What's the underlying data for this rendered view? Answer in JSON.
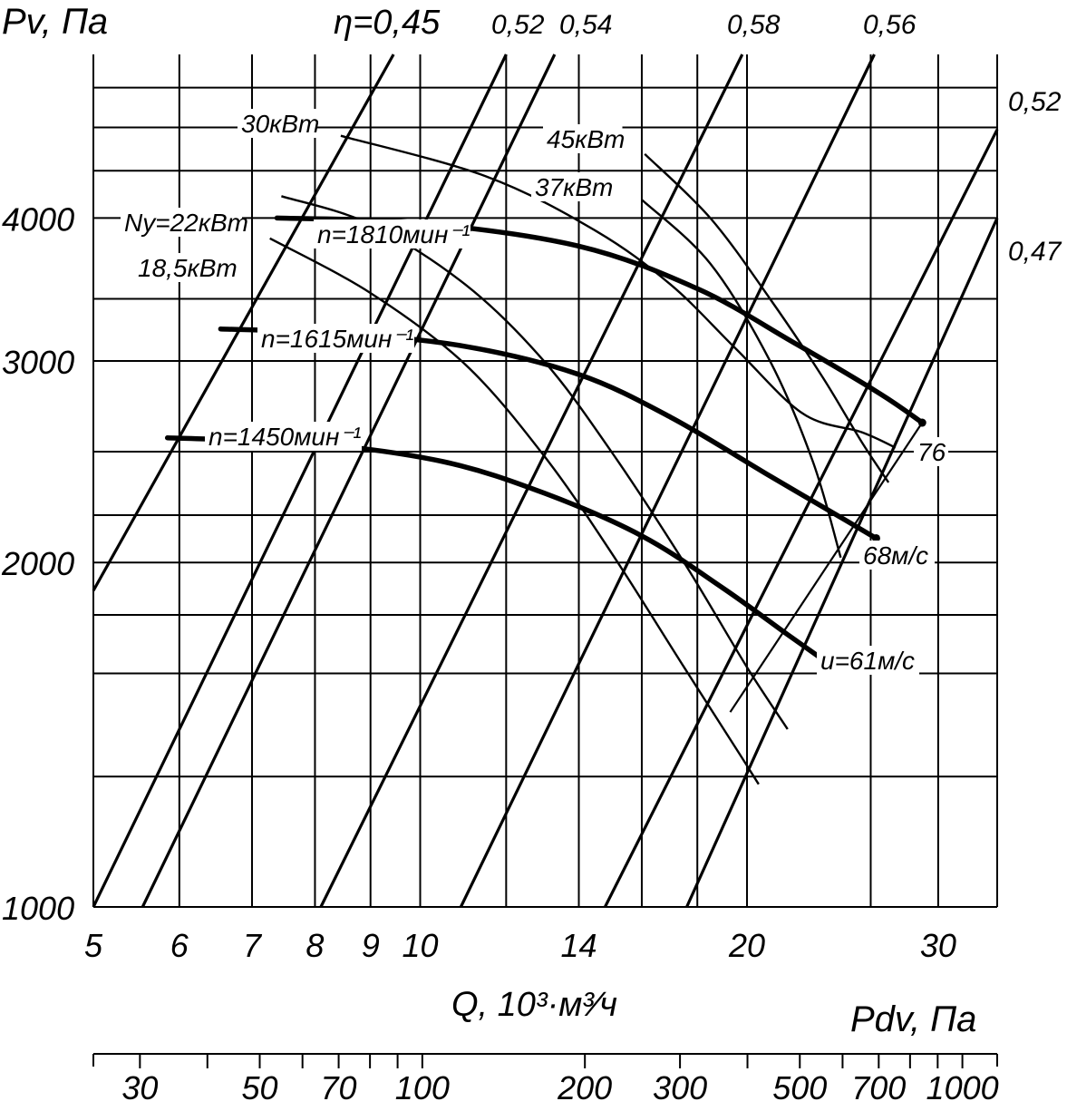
{
  "chart_data": {
    "type": "line",
    "title": "",
    "ylabel": "Pv, Па",
    "xlabel": "Q, 10³·м³⁄ч",
    "x2label": "Pdv, Па",
    "x_scale": "log",
    "y_scale": "log",
    "xlim": [
      5,
      34
    ],
    "ylim": [
      1000,
      5560
    ],
    "x_ticks": [
      5,
      6,
      7,
      8,
      9,
      10,
      14,
      20,
      30
    ],
    "x_tick_labels": [
      "5",
      "6",
      "7",
      "8",
      "9",
      "10",
      "14",
      "20",
      "30"
    ],
    "x_extra_gridlines": [
      12,
      16,
      18,
      26
    ],
    "y_ticks": [
      1000,
      2000,
      3000,
      4000
    ],
    "y_tick_labels": [
      "1000",
      "2000",
      "3000",
      "4000"
    ],
    "y_extra_gridlines": [
      1300,
      1600,
      1800,
      2200,
      2500,
      3400,
      4400,
      4800,
      5200
    ],
    "x2_scale": "log",
    "x2lim": [
      24.6,
      1160
    ],
    "x2_ticks": [
      30,
      40,
      50,
      60,
      70,
      80,
      90,
      100,
      200,
      300,
      400,
      500,
      600,
      700,
      800,
      900,
      1000
    ],
    "x2_labeled_ticks": [
      30,
      50,
      70,
      100,
      200,
      300,
      500,
      700,
      1000
    ],
    "x2_tick_labels": [
      "30",
      "50",
      "70",
      "100",
      "200",
      "300",
      "500",
      "700",
      "1000"
    ],
    "grid": true,
    "series": [
      {
        "name": "n=1810мин⁻¹",
        "kind": "speed",
        "x": [
          7.38,
          10,
          14,
          18,
          22,
          26.5,
          29
        ],
        "y": [
          4000,
          3960,
          3780,
          3470,
          3120,
          2810,
          2650
        ]
      },
      {
        "name": "n=1615мин⁻¹",
        "kind": "speed",
        "x": [
          6.55,
          8.5,
          11,
          14,
          17,
          21,
          24.6,
          26.3
        ],
        "y": [
          3200,
          3170,
          3090,
          2920,
          2680,
          2380,
          2180,
          2100
        ]
      },
      {
        "name": "n=1450мин⁻¹",
        "kind": "speed",
        "x": [
          5.85,
          8,
          10.5,
          13,
          16,
          19,
          21.8,
          23.6
        ],
        "y": [
          2570,
          2540,
          2450,
          2300,
          2110,
          1900,
          1730,
          1640
        ]
      }
    ],
    "efficiency_lines": [
      {
        "label": "η=0,45",
        "x": [
          5,
          9.45
        ],
        "y": [
          1890,
          5560
        ]
      },
      {
        "label": "0,52",
        "x": [
          5,
          12.0
        ],
        "y": [
          1000,
          5560
        ]
      },
      {
        "label": "0,54",
        "x": [
          5.55,
          13.3
        ],
        "y": [
          1000,
          5560
        ]
      },
      {
        "label": "0,58",
        "x": [
          8.1,
          19.8
        ],
        "y": [
          1000,
          5560
        ]
      },
      {
        "label": "0,56",
        "x": [
          10.9,
          26.2
        ],
        "y": [
          1000,
          5560
        ]
      },
      {
        "label": "0,52",
        "x": [
          14.8,
          34
        ],
        "y": [
          1000,
          4780
        ]
      },
      {
        "label": "0,47",
        "x": [
          17.6,
          34
        ],
        "y": [
          1000,
          4000
        ]
      }
    ],
    "power_curves": [
      {
        "label": "30кВт",
        "x": [
          8.45,
          11.5,
          14.5,
          17,
          19.5,
          22.5,
          25.5,
          27.4
        ],
        "y": [
          4720,
          4350,
          3900,
          3500,
          3080,
          2700,
          2600,
          2520
        ]
      },
      {
        "label": "45кВт",
        "x": [
          16.1,
          18.5,
          21,
          23.5,
          25.5,
          27
        ],
        "y": [
          4550,
          4000,
          3400,
          2900,
          2550,
          2350
        ]
      },
      {
        "label": "37кВт",
        "x": [
          16,
          18.5,
          21,
          23,
          24.4
        ],
        "y": [
          4150,
          3650,
          3000,
          2450,
          2020
        ]
      },
      {
        "label": "Ny=22кВт",
        "x": [
          7.45,
          9,
          11,
          13,
          15,
          17.5,
          20,
          21.8
        ],
        "y": [
          4180,
          3950,
          3500,
          3000,
          2500,
          2000,
          1620,
          1430
        ]
      },
      {
        "label": "18,5кВт",
        "x": [
          7.27,
          9,
          11,
          13,
          15,
          17.5,
          19.5,
          20.5
        ],
        "y": [
          3840,
          3440,
          2980,
          2480,
          2040,
          1620,
          1380,
          1280
        ]
      }
    ],
    "tip_speed_line": {
      "x": [
        19.3,
        29
      ],
      "y": [
        1480,
        2650
      ]
    },
    "annotations": [
      {
        "text": "76",
        "x": 29,
        "y": 2650
      },
      {
        "text": "68м/с",
        "x": 26.3,
        "y": 2100
      },
      {
        "text": "u=61м/с",
        "x": 23.6,
        "y": 1640
      },
      {
        "text": "n=1810мин⁻¹",
        "x": 8.3,
        "y": 4150
      },
      {
        "text": "n=1615мин⁻¹",
        "x": 7.3,
        "y": 3420
      },
      {
        "text": "n=1450мин⁻¹",
        "x": 6.6,
        "y": 2680
      }
    ]
  }
}
